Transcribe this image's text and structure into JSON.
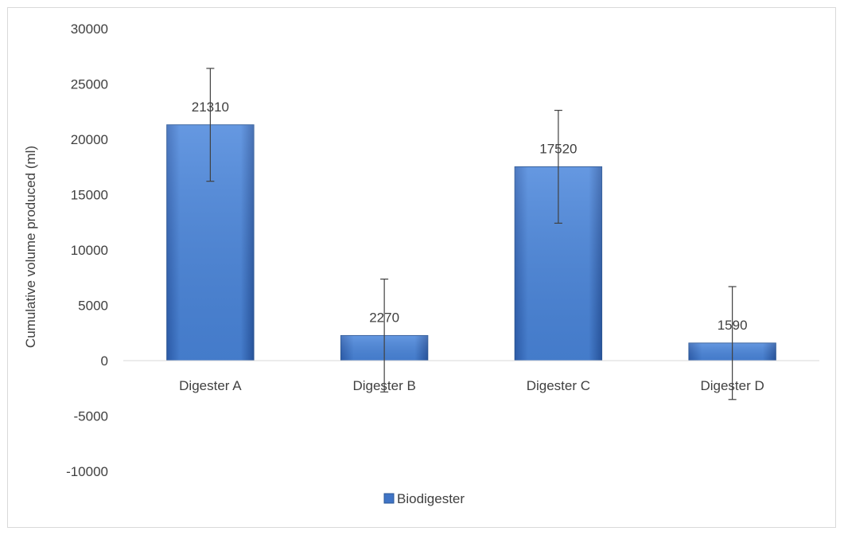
{
  "chart_data": {
    "type": "bar",
    "title": "",
    "xlabel": "",
    "ylabel": "Cumulative volume produced (ml)",
    "categories": [
      "Digester A",
      "Digester B",
      "Digester C",
      "Digester D"
    ],
    "series": [
      {
        "name": "Biodigester",
        "values": [
          21310,
          2270,
          17520,
          1590
        ],
        "error": [
          5100,
          5100,
          5100,
          5100
        ],
        "color": "#4a7fd0"
      }
    ],
    "data_labels": [
      "21310",
      "2270",
      "17520",
      "1590"
    ],
    "ylim": [
      -10000,
      30000
    ],
    "yticks": [
      30000,
      25000,
      20000,
      15000,
      10000,
      5000,
      0,
      -5000,
      -10000
    ],
    "ytick_labels": [
      "30000",
      "25000",
      "20000",
      "15000",
      "10000",
      "5000",
      "0",
      "-5000",
      "-10000"
    ],
    "grid": false,
    "legend": {
      "position": "bottom",
      "entries": [
        "Biodigester"
      ]
    }
  }
}
